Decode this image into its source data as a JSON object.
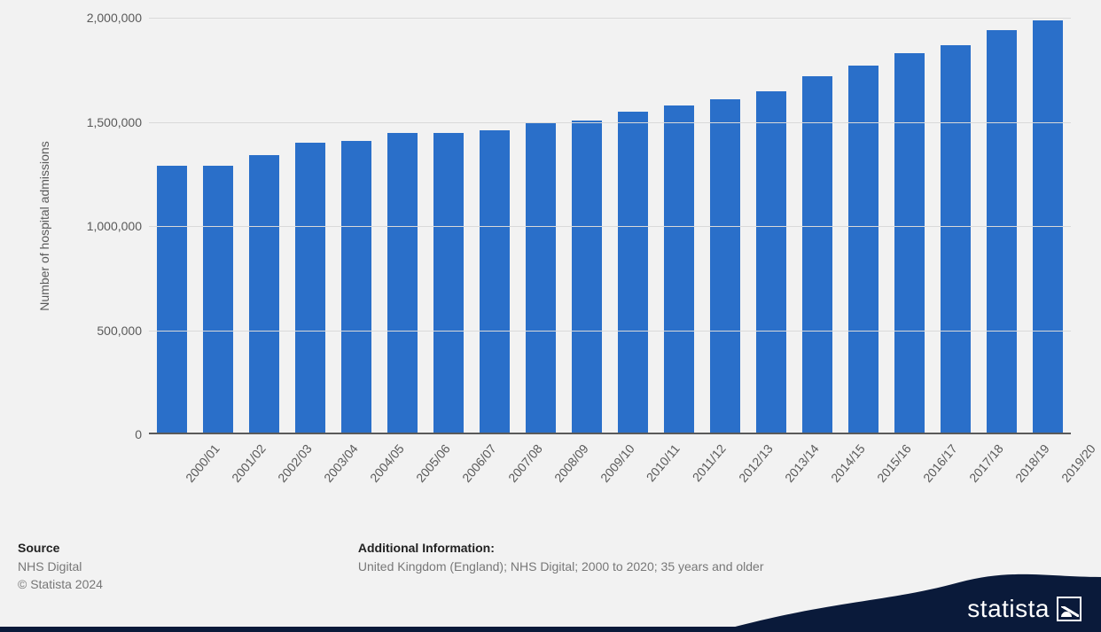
{
  "chart": {
    "type": "bar",
    "y_axis_title": "Number of hospital admissions",
    "categories": [
      "2000/01",
      "2001/02",
      "2002/03",
      "2003/04",
      "2004/05",
      "2005/06",
      "2006/07",
      "2007/08",
      "2008/09",
      "2009/10",
      "2010/11",
      "2011/12",
      "2012/13",
      "2013/14",
      "2014/15",
      "2015/16",
      "2016/17",
      "2017/18",
      "2018/19",
      "2019/20"
    ],
    "values": [
      1280000,
      1280000,
      1330000,
      1390000,
      1400000,
      1440000,
      1440000,
      1450000,
      1490000,
      1500000,
      1540000,
      1570000,
      1600000,
      1640000,
      1710000,
      1760000,
      1820000,
      1860000,
      1930000,
      1980000
    ],
    "bar_color": "#2a6fc9",
    "background_color": "#f2f2f2",
    "grid_color": "#d9d9d9",
    "axis_color": "#5a5a5a",
    "label_color": "#5a5a5a",
    "ylim": [
      0,
      2000000
    ],
    "yticks": [
      0,
      500000,
      1000000,
      1500000,
      2000000
    ],
    "ytick_labels": [
      "0",
      "500,000",
      "1,000,000",
      "1,500,000",
      "2,000,000"
    ],
    "bar_width_ratio": 0.66,
    "axis_font_size": 14,
    "x_label_rotation_deg": -50
  },
  "footer": {
    "source_heading": "Source",
    "source_line1": "NHS Digital",
    "source_line2": "© Statista 2024",
    "info_heading": "Additional Information:",
    "info_line": "United Kingdom (England); NHS Digital; 2000 to 2020; 35 years and older"
  },
  "branding": {
    "logo_text": "statista",
    "swoosh_color": "#0a1a3a",
    "logo_text_color": "#ffffff"
  }
}
